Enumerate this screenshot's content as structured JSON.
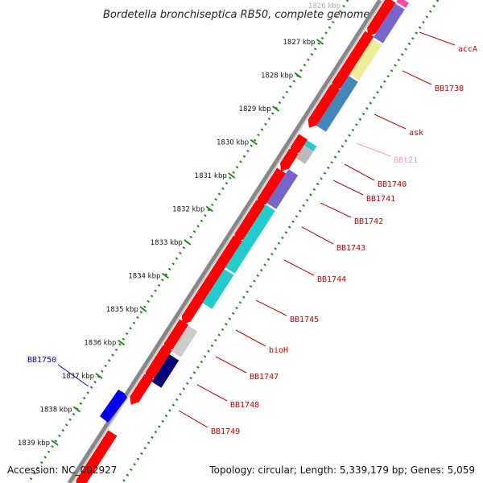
{
  "title": "Bordetella bronchiseptica RB50, complete genome",
  "footer": {
    "accession": "Accession: NC_002927",
    "topology": "Topology: circular; Length: 5,339,179 bp; Genes: 5,059"
  },
  "colors": {
    "background": "#ffffff",
    "backbone": "#888888",
    "tick_line": "#228822",
    "gene_default": "#ff0000",
    "label_red": "#cc0000",
    "label_pink": "#ff99cc",
    "label_blue": "#0000cc"
  },
  "scale": {
    "visible_top_label": "1826 kbp",
    "tick_labels": [
      "1827 kbp",
      "1828 kbp",
      "1829 kbp",
      "1830 kbp",
      "1831 kbp",
      "1832 kbp",
      "1833 kbp",
      "1834 kbp",
      "1835 kbp",
      "1836 kbp",
      "1837 kbp",
      "1838 kbp",
      "1839 kbp"
    ]
  },
  "features": [
    {
      "label": "accA",
      "color": "#ff0000",
      "annotation_color": "#aabbff",
      "strand": "reverse"
    },
    {
      "label": "BB1738",
      "color": "#ff0000",
      "annotation_color": "#eeee99",
      "strand": "reverse"
    },
    {
      "label": "ask",
      "color": "#ff0000",
      "annotation_color": "#4488bb",
      "strand": "reverse"
    },
    {
      "label": "BBt21",
      "color": "#ff99cc",
      "annotation_color": "",
      "strand": "reverse"
    },
    {
      "label": "BB1740",
      "color": "#ff0000",
      "annotation_color": "#22cccc",
      "strand": "reverse"
    },
    {
      "label": "BB1741",
      "color": "#ff0000",
      "annotation_color": "#bbbbbb",
      "strand": "reverse"
    },
    {
      "label": "BB1742",
      "color": "#ff0000",
      "annotation_color": "#7766cc",
      "strand": "reverse"
    },
    {
      "label": "BB1743",
      "color": "#ff0000",
      "annotation_color": "#22cccc",
      "strand": "reverse"
    },
    {
      "label": "BB1744",
      "color": "#ff0000",
      "annotation_color": "#22cccc",
      "strand": "reverse"
    },
    {
      "label": "BB1745",
      "color": "#ff0000",
      "annotation_color": "#22cccc",
      "strand": "reverse"
    },
    {
      "label": "bioH",
      "color": "#ff0000",
      "annotation_color": "#cccccc",
      "strand": "reverse"
    },
    {
      "label": "BB1747",
      "color": "#ff0000",
      "annotation_color": "#000077",
      "strand": "reverse"
    },
    {
      "label": "BB1748",
      "color": "#ff0000",
      "annotation_color": "",
      "strand": "reverse"
    },
    {
      "label": "BB1749",
      "color": "#ff0000",
      "annotation_color": "",
      "strand": "reverse"
    },
    {
      "label": "BB1750",
      "color": "#0000ff",
      "annotation_color": "",
      "strand": "forward"
    }
  ]
}
